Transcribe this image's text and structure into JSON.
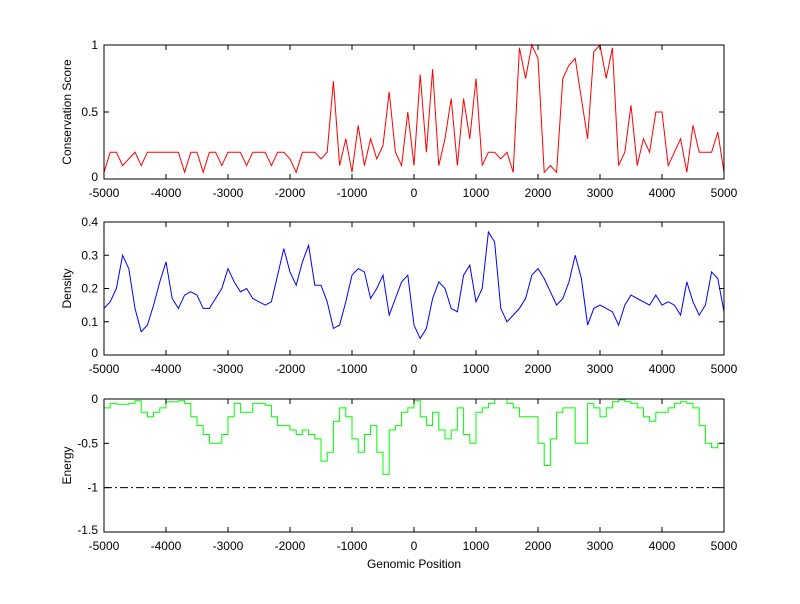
{
  "chart_data": [
    {
      "type": "line",
      "ylabel": "Conservation Score",
      "xlabel": "",
      "color": "#ff0000",
      "xlim": [
        -5000,
        5000
      ],
      "ylim": [
        0,
        1
      ],
      "xticks": [
        -5000,
        -4000,
        -3000,
        -2000,
        -1000,
        0,
        1000,
        2000,
        3000,
        4000,
        5000
      ],
      "yticks": [
        0,
        0.5,
        1
      ],
      "ytick_labels": [
        "0",
        "0.5",
        "1"
      ],
      "x_step": 100,
      "values": [
        0.05,
        0.2,
        0.2,
        0.1,
        0.15,
        0.2,
        0.1,
        0.2,
        0.2,
        0.2,
        0.2,
        0.2,
        0.2,
        0.05,
        0.2,
        0.2,
        0.05,
        0.2,
        0.2,
        0.1,
        0.2,
        0.2,
        0.2,
        0.1,
        0.2,
        0.2,
        0.2,
        0.1,
        0.2,
        0.2,
        0.15,
        0.05,
        0.2,
        0.2,
        0.2,
        0.15,
        0.2,
        0.73,
        0.1,
        0.3,
        0.05,
        0.4,
        0.1,
        0.3,
        0.15,
        0.25,
        0.65,
        0.2,
        0.1,
        0.5,
        0.1,
        0.78,
        0.2,
        0.82,
        0.1,
        0.3,
        0.6,
        0.1,
        0.6,
        0.3,
        0.75,
        0.1,
        0.2,
        0.2,
        0.15,
        0.2,
        0.05,
        0.98,
        0.75,
        1.0,
        0.9,
        0.05,
        0.1,
        0.05,
        0.75,
        0.85,
        0.9,
        0.6,
        0.3,
        0.95,
        1.0,
        0.75,
        0.98,
        0.1,
        0.2,
        0.55,
        0.1,
        0.3,
        0.2,
        0.5,
        0.5,
        0.1,
        0.2,
        0.3,
        0.05,
        0.4,
        0.2,
        0.2,
        0.2,
        0.35,
        0.05
      ]
    },
    {
      "type": "line",
      "ylabel": "Density",
      "xlabel": "",
      "color": "#0000ff",
      "xlim": [
        -5000,
        5000
      ],
      "ylim": [
        0,
        0.4
      ],
      "xticks": [
        -5000,
        -4000,
        -3000,
        -2000,
        -1000,
        0,
        1000,
        2000,
        3000,
        4000,
        5000
      ],
      "yticks": [
        0,
        0.1,
        0.2,
        0.3,
        0.4
      ],
      "ytick_labels": [
        "0",
        "0.1",
        "0.2",
        "0.3",
        "0.4"
      ],
      "x_step": 100,
      "values": [
        0.14,
        0.16,
        0.2,
        0.3,
        0.26,
        0.14,
        0.07,
        0.09,
        0.15,
        0.22,
        0.28,
        0.17,
        0.14,
        0.18,
        0.19,
        0.18,
        0.14,
        0.14,
        0.17,
        0.2,
        0.26,
        0.22,
        0.19,
        0.2,
        0.17,
        0.16,
        0.15,
        0.16,
        0.24,
        0.32,
        0.25,
        0.21,
        0.28,
        0.33,
        0.21,
        0.21,
        0.16,
        0.08,
        0.09,
        0.16,
        0.24,
        0.26,
        0.25,
        0.17,
        0.2,
        0.24,
        0.12,
        0.17,
        0.22,
        0.24,
        0.09,
        0.05,
        0.08,
        0.17,
        0.22,
        0.2,
        0.14,
        0.13,
        0.24,
        0.27,
        0.16,
        0.2,
        0.37,
        0.34,
        0.14,
        0.1,
        0.12,
        0.14,
        0.17,
        0.24,
        0.26,
        0.23,
        0.19,
        0.15,
        0.17,
        0.22,
        0.3,
        0.23,
        0.09,
        0.14,
        0.15,
        0.14,
        0.13,
        0.09,
        0.15,
        0.18,
        0.17,
        0.16,
        0.15,
        0.18,
        0.15,
        0.16,
        0.15,
        0.12,
        0.22,
        0.16,
        0.12,
        0.15,
        0.25,
        0.23,
        0.13
      ]
    },
    {
      "type": "line",
      "ylabel": "Energy",
      "xlabel": "Genomic Position",
      "color": "#00ff00",
      "xlim": [
        -5000,
        5000
      ],
      "ylim": [
        -1.5,
        0
      ],
      "xticks": [
        -5000,
        -4000,
        -3000,
        -2000,
        -1000,
        0,
        1000,
        2000,
        3000,
        4000,
        5000
      ],
      "yticks": [
        -1.5,
        -1,
        -0.5,
        0
      ],
      "ytick_labels": [
        "-1.5",
        "-1",
        "-0.5",
        "0"
      ],
      "x_step": 100,
      "step_plot": true,
      "threshold": {
        "value": -1,
        "style": "dash-dot",
        "color": "#000000"
      },
      "values": [
        -0.1,
        -0.05,
        -0.06,
        -0.06,
        -0.05,
        -0.02,
        -0.15,
        -0.2,
        -0.15,
        -0.1,
        -0.03,
        -0.03,
        -0.02,
        -0.05,
        -0.2,
        -0.3,
        -0.4,
        -0.5,
        -0.5,
        -0.4,
        -0.2,
        -0.05,
        -0.15,
        -0.15,
        -0.05,
        -0.05,
        -0.07,
        -0.2,
        -0.3,
        -0.3,
        -0.35,
        -0.4,
        -0.35,
        -0.4,
        -0.45,
        -0.7,
        -0.6,
        -0.25,
        -0.1,
        -0.2,
        -0.45,
        -0.6,
        -0.4,
        -0.3,
        -0.6,
        -0.85,
        -0.35,
        -0.3,
        -0.15,
        -0.1,
        -0.02,
        -0.2,
        -0.3,
        -0.15,
        -0.35,
        -0.45,
        -0.35,
        -0.1,
        -0.4,
        -0.5,
        -0.15,
        -0.1,
        -0.05,
        0,
        0,
        -0.05,
        -0.1,
        -0.2,
        -0.2,
        -0.2,
        -0.5,
        -0.75,
        -0.45,
        -0.15,
        -0.1,
        -0.1,
        -0.5,
        -0.5,
        -0.05,
        -0.1,
        -0.2,
        -0.1,
        -0.03,
        -0.01,
        -0.03,
        -0.05,
        -0.1,
        -0.2,
        -0.25,
        -0.15,
        -0.15,
        -0.1,
        -0.05,
        -0.03,
        -0.05,
        -0.1,
        -0.3,
        -0.5,
        -0.55,
        -0.5,
        -0.2
      ]
    }
  ]
}
